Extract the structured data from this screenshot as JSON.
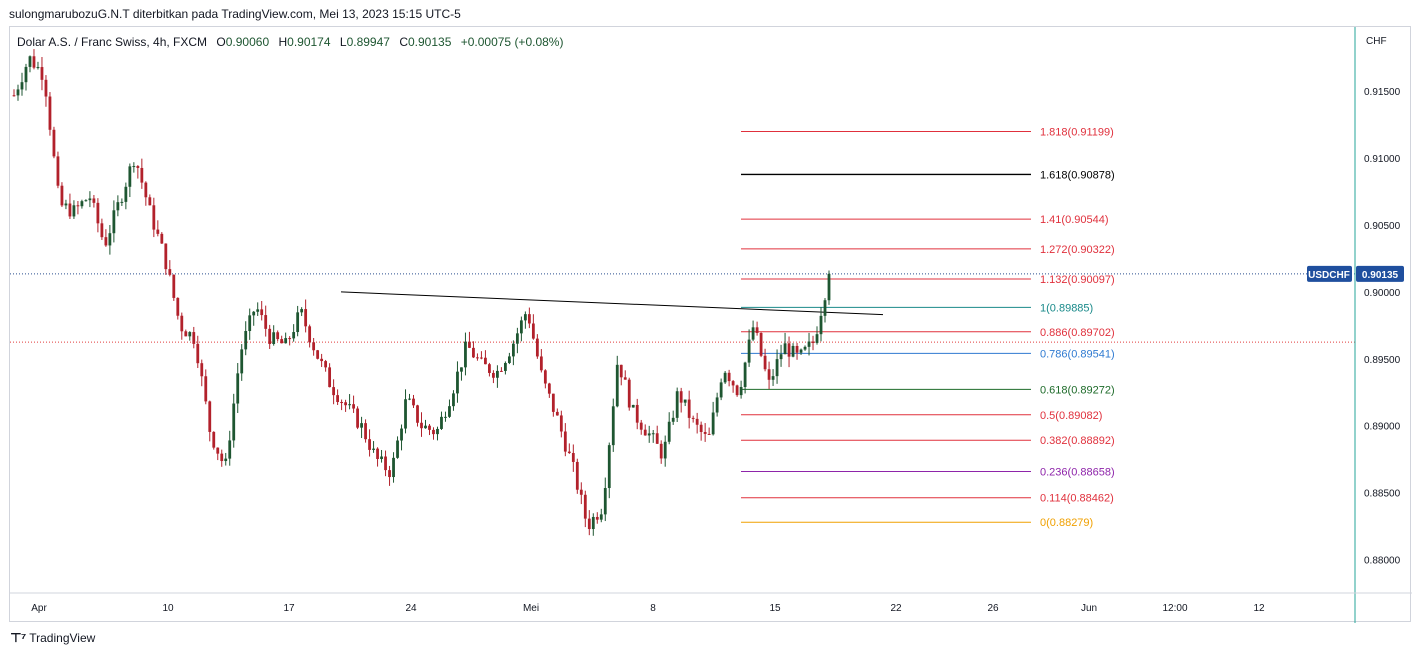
{
  "header": {
    "publish_text": "sulongmarubozuG.N.T diterbitkan pada TradingView.com, Mei 13, 2023 15:15 UTC-5"
  },
  "legend": {
    "symbol": "Dolar A.S. / Franc Swiss, 4h, FXCM",
    "o_label": "O",
    "o": "0.90060",
    "h_label": "H",
    "h": "0.90174",
    "l_label": "L",
    "l": "0.89947",
    "c_label": "C",
    "c": "0.90135",
    "change": "+0.00075 (+0.08%)"
  },
  "price_axis": {
    "currency": "CHF",
    "ticks": [
      "0.91500",
      "0.91000",
      "0.90500",
      "0.90000",
      "0.89500",
      "0.89000",
      "0.88500",
      "0.88000"
    ],
    "symbol_badge": "USDCHF",
    "last_price_badge": "0.90135"
  },
  "time_axis": {
    "labels": [
      "Apr",
      "10",
      "17",
      "24",
      "Mei",
      "8",
      "15",
      "22",
      "26",
      "Jun",
      "12:00",
      "12"
    ]
  },
  "footer": {
    "brand": "TradingView",
    "logo_icon": "tradingview-logo-icon"
  },
  "colors": {
    "up": "#26a69a",
    "up_body": "#1e5631",
    "down": "#b2212b",
    "last_price_line": "#2a4f8f",
    "badge_bg": "#1f4f9e",
    "red_dotted": "#e03b3b"
  },
  "chart_data": {
    "type": "candlestick",
    "symbol": "USDCHF",
    "timeframe": "4h",
    "ylim": [
      0.8775,
      0.9198
    ],
    "last_price": 0.90135,
    "horizontal_lines": [
      {
        "price": 0.90135,
        "style": "dotted",
        "color": "#2a4f8f"
      },
      {
        "price": 0.89625,
        "style": "dotted",
        "color": "#e03b3b"
      }
    ],
    "fibonacci_levels": [
      {
        "label": "1.818(0.91199)",
        "ratio": 1.818,
        "price": 0.91199,
        "color": "#e0303c"
      },
      {
        "label": "1.618(0.90878)",
        "ratio": 1.618,
        "price": 0.90878,
        "color": "#000000"
      },
      {
        "label": "1.41(0.90544)",
        "ratio": 1.41,
        "price": 0.90544,
        "color": "#e0303c"
      },
      {
        "label": "1.272(0.90322)",
        "ratio": 1.272,
        "price": 0.90322,
        "color": "#e0303c"
      },
      {
        "label": "1.132(0.90097)",
        "ratio": 1.132,
        "price": 0.90097,
        "color": "#e0303c"
      },
      {
        "label": "1(0.89885)",
        "ratio": 1.0,
        "price": 0.89885,
        "color": "#1a8a8a"
      },
      {
        "label": "0.886(0.89702)",
        "ratio": 0.886,
        "price": 0.89702,
        "color": "#e0303c"
      },
      {
        "label": "0.786(0.89541)",
        "ratio": 0.786,
        "price": 0.89541,
        "color": "#2f7ad1"
      },
      {
        "label": "0.618(0.89272)",
        "ratio": 0.618,
        "price": 0.89272,
        "color": "#1e6b2a"
      },
      {
        "label": "0.5(0.89082)",
        "ratio": 0.5,
        "price": 0.89082,
        "color": "#e0303c"
      },
      {
        "label": "0.382(0.88892)",
        "ratio": 0.382,
        "price": 0.88892,
        "color": "#e0303c"
      },
      {
        "label": "0.236(0.88658)",
        "ratio": 0.236,
        "price": 0.88658,
        "color": "#8e24aa"
      },
      {
        "label": "0.114(0.88462)",
        "ratio": 0.114,
        "price": 0.88462,
        "color": "#e0303c"
      },
      {
        "label": "0(0.88279)",
        "ratio": 0.0,
        "price": 0.88279,
        "color": "#f0a000"
      }
    ],
    "trendline": {
      "from": [
        0,
        0.9
      ],
      "to": [
        1,
        0.8983
      ],
      "color": "#000000"
    },
    "candles_keypoints": [
      0.9147,
      0.9175,
      0.9162,
      0.9065,
      0.906,
      0.9072,
      0.9035,
      0.9068,
      0.9102,
      0.906,
      0.9025,
      0.8975,
      0.8965,
      0.8895,
      0.8868,
      0.8955,
      0.899,
      0.8965,
      0.896,
      0.8985,
      0.8955,
      0.893,
      0.8915,
      0.89,
      0.8875,
      0.8865,
      0.892,
      0.89,
      0.8895,
      0.8925,
      0.896,
      0.8945,
      0.894,
      0.896,
      0.8987,
      0.8935,
      0.8905,
      0.887,
      0.8825,
      0.884,
      0.895,
      0.891,
      0.8895,
      0.8878,
      0.8925,
      0.8902,
      0.8888,
      0.8945,
      0.8925,
      0.8975,
      0.893,
      0.896,
      0.895,
      0.8963,
      0.9013
    ]
  }
}
